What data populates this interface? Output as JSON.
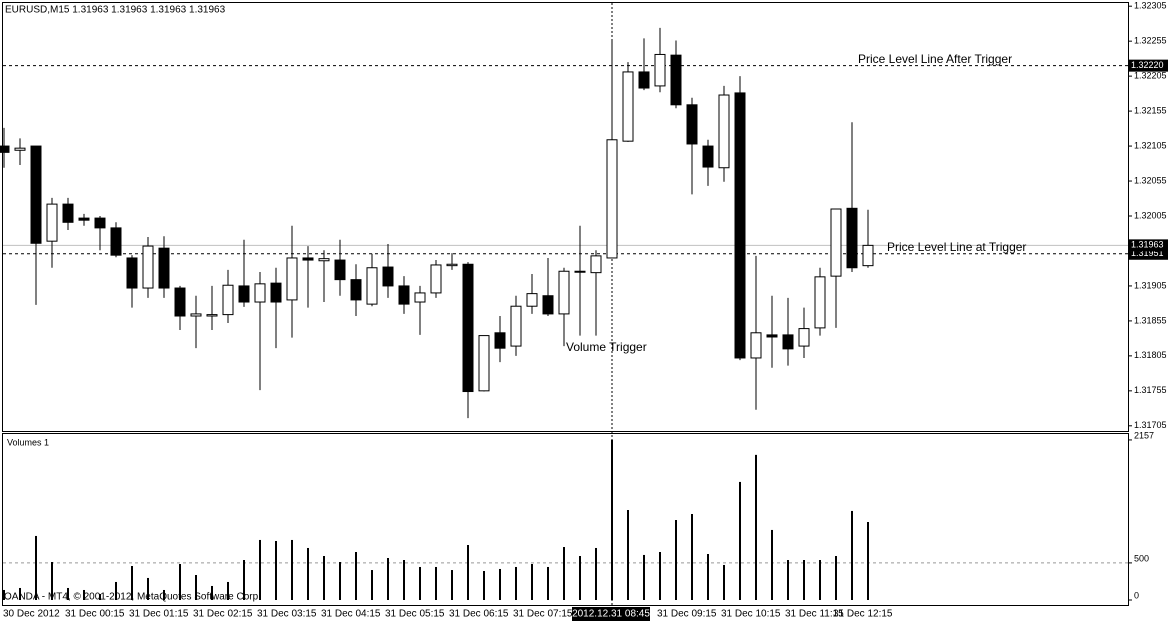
{
  "chart_data": [
    {
      "type": "candlestick",
      "title": "EURUSD,M15  1.31963 1.31963 1.31963 1.31963",
      "categories": [
        "30 Dec 2012",
        null,
        null,
        null,
        "31 Dec 00:15",
        null,
        null,
        null,
        "31 Dec 01:15",
        null,
        null,
        null,
        "31 Dec 02:15",
        null,
        null,
        null,
        "31 Dec 03:15",
        null,
        null,
        null,
        "31 Dec 04:15",
        null,
        null,
        null,
        "31 Dec 05:15",
        null,
        null,
        null,
        "31 Dec 06:15",
        null,
        null,
        null,
        "31 Dec 07:15",
        null,
        null,
        null,
        null,
        null,
        null,
        null,
        null,
        "31 Dec 09:15",
        null,
        null,
        null,
        "31 Dec 10:15",
        null,
        null,
        null,
        "31 Dec 11:15",
        null,
        null,
        "31 Dec 12:15",
        null,
        null
      ],
      "open": [
        1.32105,
        1.32099,
        1.32105,
        1.31969,
        1.32022,
        1.32002,
        1.32002,
        1.31988,
        1.31945,
        1.31902,
        1.31959,
        1.31902,
        1.31862,
        1.31862,
        1.31864,
        1.31905,
        1.31882,
        1.31909,
        1.31885,
        1.31945,
        1.31941,
        1.31942,
        1.31914,
        1.31879,
        1.31932,
        1.31905,
        1.31882,
        1.31895,
        1.31934,
        1.31936,
        1.31755,
        1.31838,
        1.31819,
        1.31876,
        1.31891,
        1.31865,
        1.31925,
        1.31924,
        1.31945,
        1.32112,
        1.32211,
        1.32191,
        1.32235,
        1.32164,
        1.32105,
        1.32074,
        1.32181,
        1.31802,
        1.31835,
        1.31835,
        1.31819,
        1.31845,
        1.31919,
        1.32016,
        1.31934
      ],
      "high": [
        1.32131,
        1.32116,
        1.32105,
        1.32031,
        1.32031,
        1.32008,
        1.32005,
        1.31996,
        1.31949,
        1.31975,
        1.31976,
        1.31905,
        1.31891,
        1.31905,
        1.31928,
        1.31971,
        1.31925,
        1.31931,
        1.31991,
        1.31962,
        1.31956,
        1.31971,
        1.31936,
        1.31951,
        1.31965,
        1.31919,
        1.31905,
        1.31942,
        1.31952,
        1.31939,
        1.31834,
        1.31862,
        1.31891,
        1.31922,
        1.31945,
        1.31931,
        1.31991,
        1.31956,
        1.32256,
        1.32225,
        1.32259,
        1.32274,
        1.32256,
        1.32174,
        1.32114,
        1.32191,
        1.32205,
        1.31948,
        1.31891,
        1.31888,
        1.31874,
        1.31931,
        1.32015,
        1.32139,
        1.32014
      ],
      "low": [
        1.32074,
        1.32078,
        1.31878,
        1.31931,
        1.31985,
        1.31991,
        1.31956,
        1.31946,
        1.31874,
        1.31888,
        1.31888,
        1.31842,
        1.31816,
        1.31842,
        1.31852,
        1.31875,
        1.31756,
        1.31816,
        1.31831,
        1.31874,
        1.31882,
        1.31891,
        1.31862,
        1.31876,
        1.31888,
        1.31865,
        1.31835,
        1.31888,
        1.31928,
        1.31716,
        1.31754,
        1.31796,
        1.31805,
        1.31865,
        1.31862,
        1.31819,
        1.31834,
        1.31834,
        1.31945,
        1.32111,
        1.32185,
        1.32182,
        1.32159,
        1.32036,
        1.32048,
        1.32054,
        1.31799,
        1.31728,
        1.31788,
        1.31791,
        1.31802,
        1.31834,
        1.31845,
        1.31925,
        1.31931
      ],
      "close": [
        1.32096,
        1.32102,
        1.31966,
        1.32022,
        1.31996,
        1.31999,
        1.31988,
        1.31949,
        1.31902,
        1.31962,
        1.31902,
        1.31862,
        1.31865,
        1.31864,
        1.31906,
        1.31882,
        1.31908,
        1.31882,
        1.31945,
        1.31942,
        1.31944,
        1.31914,
        1.31885,
        1.31931,
        1.31905,
        1.31879,
        1.31895,
        1.31935,
        1.31936,
        1.31754,
        1.31834,
        1.31816,
        1.31876,
        1.31894,
        1.31865,
        1.31926,
        1.31926,
        1.31948,
        1.32114,
        1.32211,
        1.32188,
        1.32236,
        1.32164,
        1.32108,
        1.32075,
        1.32178,
        1.31802,
        1.31838,
        1.31832,
        1.31815,
        1.31844,
        1.31918,
        1.32015,
        1.31931,
        1.31963
      ],
      "up_color": "#ffffff",
      "down_color": "#000000",
      "ylim": [
        1.31699,
        1.32311
      ],
      "yticks": [
        1.32305,
        1.32255,
        1.32205,
        1.32155,
        1.32105,
        1.32055,
        1.32005,
        1.31905,
        1.31855,
        1.31805,
        1.31755,
        1.31705
      ],
      "lines": [
        {
          "name": "Price Level Line After Trigger",
          "price": 1.3222,
          "price_label": "1.32220"
        },
        {
          "name": "Price Level Line at Trigger",
          "price": 1.31951
        }
      ],
      "bid": 1.31963,
      "annotation": "Volume Trigger",
      "crosshair_label": "2012.12.31 08:45"
    },
    {
      "type": "bar",
      "title": "Volumes 1",
      "values": [
        135,
        162,
        863,
        512,
        162,
        135,
        81,
        243,
        458,
        297,
        135,
        485,
        337,
        189,
        243,
        539,
        809,
        795,
        809,
        701,
        593,
        512,
        647,
        404,
        566,
        539,
        445,
        445,
        404,
        741,
        391,
        418,
        445,
        485,
        445,
        714,
        593,
        701,
        2157,
        1213,
        607,
        647,
        1078,
        1159,
        620,
        472,
        1591,
        1955,
        944,
        539,
        539,
        539,
        593,
        1200,
        1051
      ],
      "color": "#000000",
      "ylim": [
        0,
        2210
      ],
      "yticks": [
        0,
        500,
        2157
      ]
    }
  ],
  "footer": "OANDA - MT4, © 2001-2012, MetaQuotes Software Corp."
}
